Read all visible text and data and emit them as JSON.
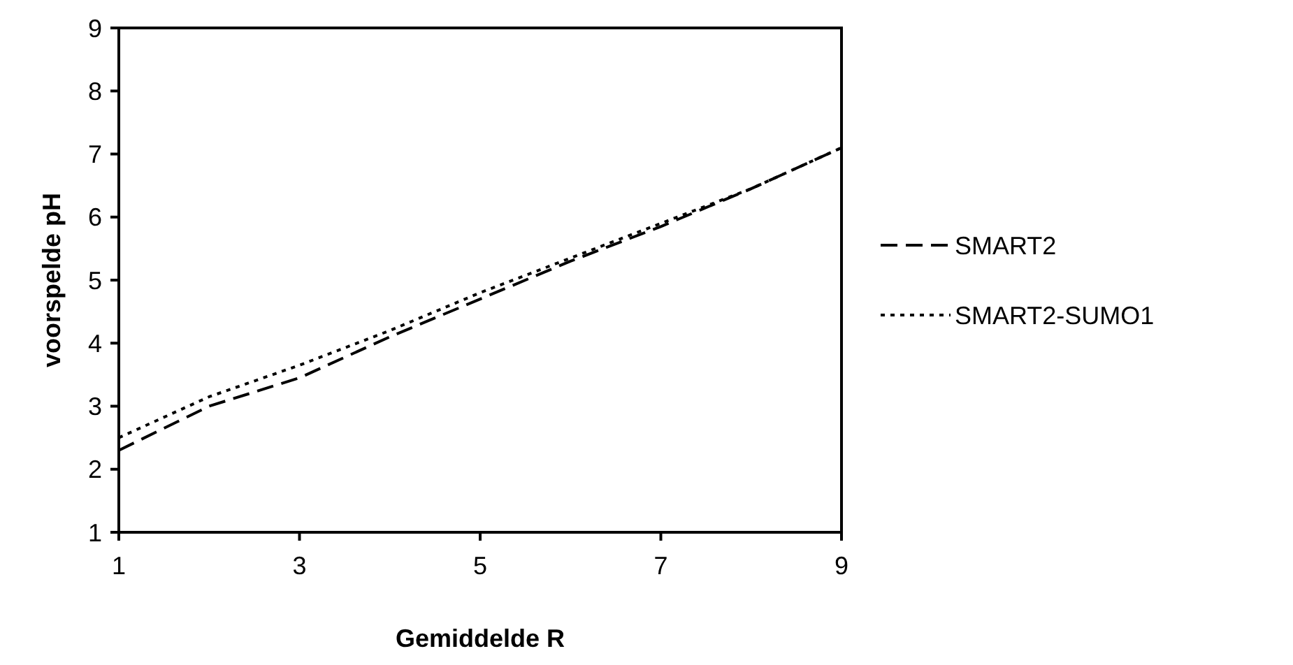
{
  "chart_data": {
    "type": "line",
    "xlabel": "Gemiddelde R",
    "ylabel": "voorspelde pH",
    "x": [
      1,
      2,
      3,
      4,
      5,
      6,
      7,
      8,
      9
    ],
    "series": [
      {
        "name": "SMART2",
        "color": "#000000",
        "line_style": "dashed",
        "values": [
          2.3,
          3.0,
          3.45,
          4.1,
          4.7,
          5.3,
          5.85,
          6.45,
          7.1
        ]
      },
      {
        "name": "SMART2-SUMO1",
        "color": "#000000",
        "line_style": "dotted",
        "values": [
          2.5,
          3.15,
          3.65,
          4.2,
          4.8,
          5.35,
          5.9,
          6.45,
          7.1
        ]
      }
    ],
    "xlim": [
      1,
      9
    ],
    "xticks": [
      1,
      3,
      5,
      7,
      9
    ],
    "ylim": [
      1,
      9
    ],
    "yticks": [
      1,
      2,
      3,
      4,
      5,
      6,
      7,
      8,
      9
    ],
    "grid": false,
    "legend": "right",
    "marker": "none"
  }
}
